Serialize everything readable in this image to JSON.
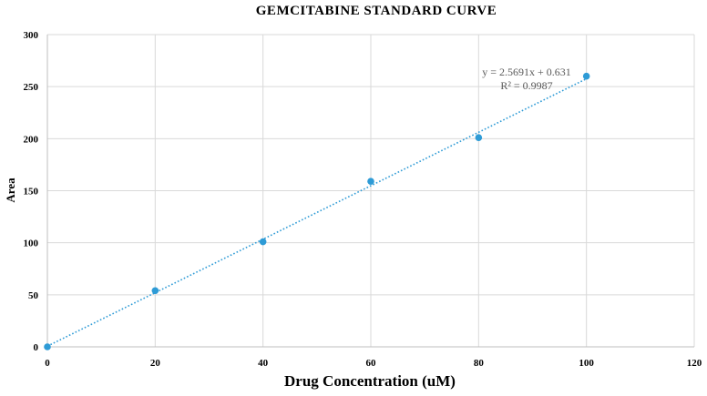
{
  "chart_data": {
    "type": "scatter",
    "title": "GEMCITABINE STANDARD CURVE",
    "xlabel": "Drug Concentration (uM)",
    "ylabel": "Area",
    "xlim": [
      0,
      120
    ],
    "ylim": [
      0,
      300
    ],
    "xticks": [
      "0",
      "20",
      "40",
      "60",
      "80",
      "100",
      "120"
    ],
    "yticks": [
      "0",
      "50",
      "100",
      "150",
      "200",
      "250",
      "300"
    ],
    "grid": true,
    "series": [
      {
        "x": [
          0,
          20,
          40,
          60,
          80,
          100
        ],
        "y": [
          0,
          54,
          101,
          159,
          201,
          260
        ],
        "color": "#2e9bd6"
      }
    ],
    "trendline": {
      "type": "linear",
      "slope": 2.5691,
      "intercept": 0.631,
      "color": "#2e9bd6",
      "style": "dotted"
    },
    "annotations": {
      "equation": "y = 2.5691x + 0.631",
      "r_squared": "R² = 0.9987"
    }
  }
}
